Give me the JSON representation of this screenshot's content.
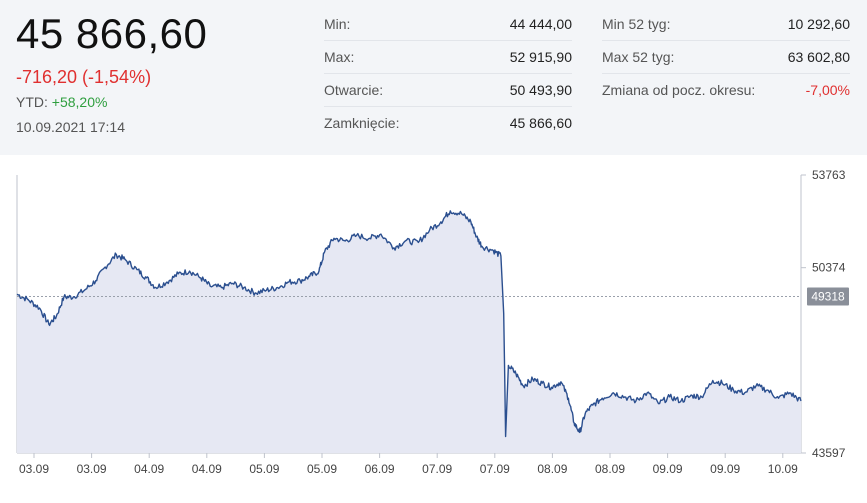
{
  "header": {
    "price": "45 866,60",
    "change": "-716,20 (-1,54%)",
    "ytd_label": "YTD:",
    "ytd_value": "+58,20%",
    "datetime": "10.09.2021 17:14"
  },
  "stats_col1": [
    {
      "label": "Min:",
      "value": "44 444,00"
    },
    {
      "label": "Max:",
      "value": "52 915,90"
    },
    {
      "label": "Otwarcie:",
      "value": "50 493,90"
    },
    {
      "label": "Zamknięcie:",
      "value": "45 866,60"
    }
  ],
  "stats_col2": [
    {
      "label": "Min 52 tyg:",
      "value": "10 292,60"
    },
    {
      "label": "Max 52 tyg:",
      "value": "63 602,80"
    },
    {
      "label": "Zmiana od pocz. okresu:",
      "value": "-7,00%"
    }
  ],
  "colors": {
    "line": "#2b4f8f",
    "fill": "#e6e8f3",
    "negative": "#e03030",
    "positive": "#2e9e3e",
    "header_bg": "#f3f5f8"
  },
  "chart_data": {
    "type": "area",
    "x_ticks": [
      "03.09",
      "03.09",
      "04.09",
      "04.09",
      "05.09",
      "05.09",
      "06.09",
      "07.09",
      "07.09",
      "08.09",
      "08.09",
      "09.09",
      "09.09",
      "10.09"
    ],
    "y_ticks": [
      53763,
      50374,
      43597
    ],
    "reference_value": 49318,
    "ylim": [
      43597,
      53763
    ],
    "series": [
      {
        "points": [
          [
            0.0,
            49400
          ],
          [
            0.6,
            49200
          ],
          [
            1.2,
            48900
          ],
          [
            1.7,
            48300
          ],
          [
            2.1,
            48600
          ],
          [
            2.5,
            49300
          ],
          [
            3.0,
            49300
          ],
          [
            3.6,
            49550
          ],
          [
            4.2,
            49900
          ],
          [
            4.7,
            50400
          ],
          [
            5.3,
            50850
          ],
          [
            5.8,
            50650
          ],
          [
            6.4,
            50300
          ],
          [
            6.9,
            50000
          ],
          [
            7.4,
            49650
          ],
          [
            8.0,
            49850
          ],
          [
            8.6,
            50150
          ],
          [
            9.2,
            50250
          ],
          [
            9.8,
            50000
          ],
          [
            10.3,
            49700
          ],
          [
            10.9,
            49650
          ],
          [
            11.5,
            49800
          ],
          [
            12.1,
            49650
          ],
          [
            12.7,
            49450
          ],
          [
            13.3,
            49550
          ],
          [
            13.9,
            49650
          ],
          [
            14.5,
            49850
          ],
          [
            15.1,
            49900
          ],
          [
            15.6,
            50050
          ],
          [
            16.1,
            50250
          ],
          [
            16.4,
            50950
          ],
          [
            16.9,
            51450
          ],
          [
            17.5,
            51350
          ],
          [
            18.1,
            51550
          ],
          [
            18.8,
            51450
          ],
          [
            19.4,
            51600
          ],
          [
            20.1,
            51100
          ],
          [
            20.7,
            51350
          ],
          [
            21.4,
            51300
          ],
          [
            22.0,
            51750
          ],
          [
            22.6,
            52050
          ],
          [
            23.1,
            52450
          ],
          [
            23.7,
            52350
          ],
          [
            24.2,
            52050
          ],
          [
            24.5,
            51500
          ],
          [
            24.8,
            51150
          ],
          [
            25.4,
            51000
          ],
          [
            25.8,
            50800
          ],
          [
            25.95,
            48700
          ],
          [
            26.05,
            44200
          ],
          [
            26.2,
            46800
          ],
          [
            26.6,
            46500
          ],
          [
            27.0,
            46050
          ],
          [
            27.5,
            46300
          ],
          [
            28.0,
            46150
          ],
          [
            28.5,
            46000
          ],
          [
            29.0,
            46200
          ],
          [
            29.4,
            45600
          ],
          [
            29.7,
            44700
          ],
          [
            30.0,
            44350
          ],
          [
            30.3,
            45050
          ],
          [
            30.7,
            45350
          ],
          [
            31.2,
            45600
          ],
          [
            31.8,
            45800
          ],
          [
            32.4,
            45650
          ],
          [
            33.0,
            45500
          ],
          [
            33.6,
            45800
          ],
          [
            34.2,
            45400
          ],
          [
            34.8,
            45650
          ],
          [
            35.4,
            45500
          ],
          [
            36.0,
            45700
          ],
          [
            36.5,
            45650
          ],
          [
            37.1,
            46250
          ],
          [
            37.6,
            46150
          ],
          [
            38.2,
            45900
          ],
          [
            38.8,
            45800
          ],
          [
            39.4,
            46050
          ],
          [
            40.0,
            45900
          ],
          [
            40.6,
            45600
          ],
          [
            41.2,
            45800
          ],
          [
            41.8,
            45500
          ]
        ]
      }
    ],
    "x_range": [
      0,
      41.8
    ],
    "grid": false
  }
}
